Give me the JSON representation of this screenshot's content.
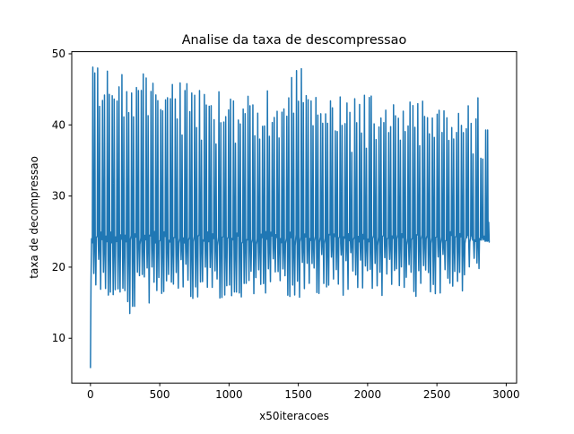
{
  "chart_data": {
    "type": "line",
    "title": "Analise da taxa de descompressao",
    "xlabel": "x50iteracoes",
    "ylabel": "taxa de decompressao",
    "xlim": [
      -135,
      3075
    ],
    "ylim": [
      3.7,
      50.3
    ],
    "x_ticks": [
      0,
      500,
      1000,
      1500,
      2000,
      2500,
      3000
    ],
    "y_ticks": [
      10,
      20,
      30,
      40,
      50
    ],
    "grid": false,
    "legend": "none",
    "series_color": "#1f77b4",
    "series": [
      {
        "x_start": 0,
        "x_end": 2870,
        "start_value": 5.8,
        "end_value": 24.0,
        "first_peak": 48.2,
        "cycle_length_approx": 35,
        "peak_values_approx": [
          48.2,
          48.0,
          48.1,
          47.9,
          47.5,
          46.8,
          45.9,
          45.5,
          45.3,
          44.9,
          45.0,
          44.3,
          44.5,
          45.0,
          45.2,
          47.9,
          45.1,
          44.7,
          44.1,
          44.0,
          44.3,
          44.2,
          43.8,
          44.2,
          44.4,
          44.1,
          43.0,
          43.7,
          43.9,
          40.2
        ],
        "baseline_approx": 24.0,
        "trough_values_approx": [
          15.3,
          14.2,
          13.0,
          15.5,
          14.6,
          15.2,
          15.8,
          15.3,
          15.6,
          15.0,
          15.4,
          16.0,
          15.2,
          15.9,
          15.7,
          15.3,
          16.2,
          15.8,
          15.9,
          16.1,
          15.8,
          15.9,
          16.0,
          16.1,
          15.8,
          16.0,
          16.2,
          15.9,
          19.8,
          23.8
        ]
      }
    ]
  }
}
